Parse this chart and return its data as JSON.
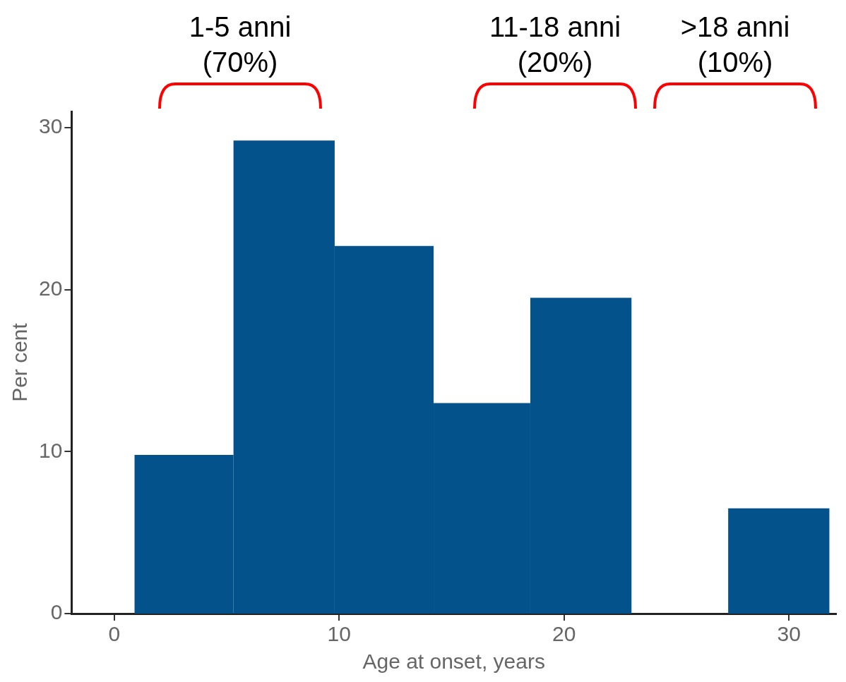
{
  "chart_data": {
    "type": "histogram",
    "xlabel": "Age at onset, years",
    "ylabel": "Per cent",
    "bins": [
      0.9,
      5.3,
      9.8,
      14.2,
      18.5,
      23.0,
      27.3,
      31.8
    ],
    "values": [
      9.8,
      29.2,
      22.7,
      13.0,
      19.5,
      0,
      6.5
    ],
    "color": "#03528c",
    "xlim": [
      -1.9,
      32.1
    ],
    "xticks": [
      0,
      10,
      20,
      30
    ],
    "ylim": [
      0,
      31
    ],
    "yticks": [
      0,
      10,
      20,
      30
    ],
    "grid": false,
    "legend": false,
    "annotations": [
      "1-5 anni\n(70%)",
      "11-18 anni\n(20%)",
      ">18 anni\n(10%)"
    ]
  }
}
